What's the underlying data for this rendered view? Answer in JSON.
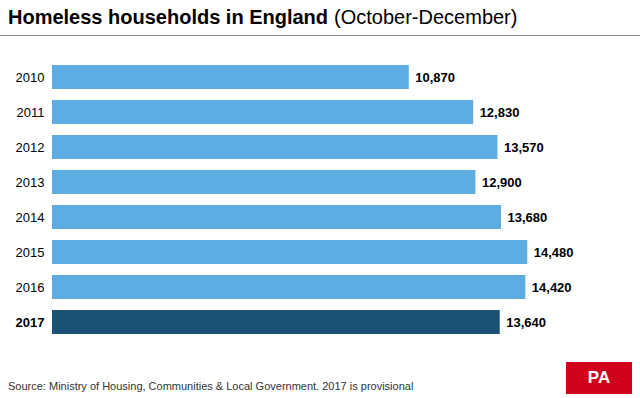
{
  "chart_data": {
    "type": "bar",
    "orientation": "horizontal",
    "title": "Homeless households in England",
    "subtitle": "(October-December)",
    "categories": [
      "2010",
      "2011",
      "2012",
      "2013",
      "2014",
      "2015",
      "2016",
      "2017"
    ],
    "values": [
      10870,
      12830,
      13570,
      12900,
      13680,
      14480,
      14420,
      13640
    ],
    "value_labels": [
      "10,870",
      "12,830",
      "13,570",
      "12,900",
      "13,680",
      "14,480",
      "14,420",
      "13,640"
    ],
    "colors": [
      "#5DADE2",
      "#5DADE2",
      "#5DADE2",
      "#5DADE2",
      "#5DADE2",
      "#5DADE2",
      "#5DADE2",
      "#1A5276"
    ],
    "xlim": [
      0,
      17000
    ],
    "data_labels": true,
    "tick_labels": "y",
    "grid": false,
    "annotations": [
      {
        "text": "Source: Ministry of Housing, Communities & Local Government. 2017 is provisional"
      },
      {
        "text": "PA",
        "color": "#d0021b"
      }
    ]
  }
}
